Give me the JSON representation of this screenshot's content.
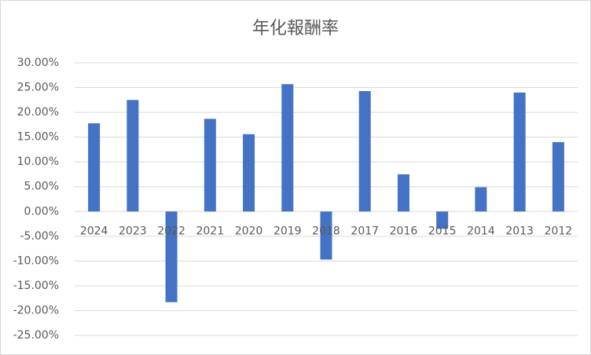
{
  "chart_data": {
    "type": "bar",
    "title": "年化報酬率",
    "categories": [
      "2024",
      "2023",
      "2022",
      "2021",
      "2020",
      "2019",
      "2018",
      "2017",
      "2016",
      "2015",
      "2014",
      "2013",
      "2012"
    ],
    "values": [
      17.8,
      22.5,
      -18.3,
      18.7,
      15.6,
      25.7,
      -9.7,
      24.3,
      7.5,
      -3.5,
      4.9,
      24.0,
      14.0
    ],
    "color": "#4472c4",
    "ylim": [
      -25,
      30
    ],
    "yticks": [
      {
        "value": -25,
        "label": "-25.00%"
      },
      {
        "value": -20,
        "label": "-20.00%"
      },
      {
        "value": -15,
        "label": "-15.00%"
      },
      {
        "value": -10,
        "label": "-10.00%"
      },
      {
        "value": -5,
        "label": "-5.00%"
      },
      {
        "value": 0,
        "label": "0.00%"
      },
      {
        "value": 5,
        "label": "5.00%"
      },
      {
        "value": 10,
        "label": "10.00%"
      },
      {
        "value": 15,
        "label": "15.00%"
      },
      {
        "value": 20,
        "label": "20.00%"
      },
      {
        "value": 25,
        "label": "25.00%"
      },
      {
        "value": 30,
        "label": "30.00%"
      }
    ],
    "grid": true
  }
}
